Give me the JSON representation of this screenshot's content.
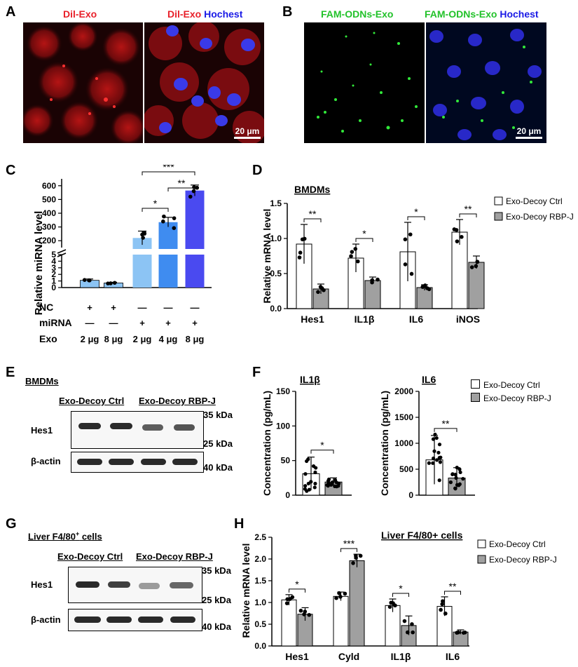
{
  "panels": {
    "A": "A",
    "B": "B",
    "C": "C",
    "D": "D",
    "E": "E",
    "F": "F",
    "G": "G",
    "H": "H"
  },
  "captions": {
    "a_left_dye": "Dil-Exo",
    "a_right_dye": "Dil-Exo",
    "a_right_nuc": "Hochest",
    "b_left_dye": "FAM-ODNs-Exo",
    "b_right_dye": "FAM-ODNs-Exo",
    "b_right_nuc": "Hochest",
    "scale_a": "20 μm",
    "scale_b": "20 μm"
  },
  "legend": {
    "ctrl": "Exo-Decoy Ctrl",
    "rbpj": "Exo-Decoy RBP-J"
  },
  "colors": {
    "dil": "#e8202a",
    "hoechst": "#1a1ae6",
    "fam": "#22c22a",
    "c_light": "#8cc4f4",
    "c_mid": "#3f8cf0",
    "c_dark": "#4a4af0",
    "ctrl_bar": "#ffffff",
    "rbpj_bar": "#a0a0a0"
  },
  "blots": {
    "e": {
      "title": "BMDMs",
      "grp1": "Exo-Decoy Ctrl",
      "grp2": "Exo-Decoy RBP-J",
      "row1": "Hes1",
      "row2": "β-actin",
      "m35": "35 kDa",
      "m25": "25 kDa",
      "m40": "40 kDa"
    },
    "g": {
      "title": "Liver F4/80",
      "title_sup": "+",
      "title_tail": " cells",
      "grp1": "Exo-Decoy Ctrl",
      "grp2": "Exo-Decoy RBP-J",
      "row1": "Hes1",
      "row2": "β-actin",
      "m35": "35 kDa",
      "m25": "25 kDa",
      "m40": "40 kDa"
    }
  },
  "table_c": {
    "rows": [
      {
        "label": "NC",
        "cells": [
          "+",
          "+",
          "—",
          "—",
          "—"
        ]
      },
      {
        "label": "miRNA",
        "cells": [
          "—",
          "—",
          "+",
          "+",
          "+"
        ]
      },
      {
        "label": "Exo",
        "cells": [
          "2 μg",
          "8 μg",
          "2 μg",
          "4 μg",
          "8 μg"
        ]
      }
    ]
  },
  "chart_data": [
    {
      "panel": "C",
      "type": "bar",
      "ylabel": "Relative miRNA level",
      "categories": [
        "NC 2 μg",
        "NC 8 μg",
        "miRNA 2 μg",
        "miRNA 4 μg",
        "miRNA 8 μg"
      ],
      "values": [
        1.1,
        0.7,
        220,
        335,
        565
      ],
      "errors": [
        0.2,
        0.1,
        50,
        35,
        40
      ],
      "broken_axis": true,
      "lower_ticks": [
        0,
        1,
        2,
        3,
        4,
        5
      ],
      "upper_ticks": [
        200,
        300,
        400,
        500,
        600
      ],
      "lower_ylim": [
        0,
        5
      ],
      "upper_ylim": [
        150,
        650
      ],
      "significance": [
        {
          "pair": [
            2,
            3
          ],
          "label": "*"
        },
        {
          "pair": [
            3,
            4
          ],
          "label": "**"
        },
        {
          "pair": [
            2,
            4
          ],
          "label": "***"
        }
      ]
    },
    {
      "panel": "D",
      "type": "bar",
      "ylabel": "Relative mRNA level",
      "title": "BMDMs",
      "categories": [
        "Hes1",
        "IL1β",
        "IL6",
        "iNOS"
      ],
      "series": [
        {
          "name": "Exo-Decoy Ctrl",
          "values": [
            0.92,
            0.72,
            0.81,
            1.09
          ],
          "errors": [
            0.28,
            0.2,
            0.42,
            0.18
          ]
        },
        {
          "name": "Exo-Decoy RBP-J",
          "values": [
            0.28,
            0.4,
            0.3,
            0.66
          ],
          "errors": [
            0.07,
            0.05,
            0.04,
            0.09
          ]
        }
      ],
      "yticks": [
        0.0,
        0.5,
        1.0,
        1.5
      ],
      "ylim": [
        0,
        1.5
      ],
      "significance": [
        "**",
        "*",
        "*",
        "**"
      ]
    },
    {
      "panel": "F-IL1β",
      "type": "bar",
      "ylabel": "Concentration (pg/mL)",
      "title": "IL1β",
      "categories": [
        "Exo-Decoy Ctrl",
        "Exo-Decoy RBP-J"
      ],
      "values": [
        31,
        19
      ],
      "errors": [
        24,
        6
      ],
      "yticks": [
        0,
        50,
        100,
        150
      ],
      "ylim": [
        0,
        150
      ],
      "significance": "*"
    },
    {
      "panel": "F-IL6",
      "type": "bar",
      "ylabel": "Concentration (pg/mL)",
      "title": "IL6",
      "categories": [
        "Exo-Decoy Ctrl",
        "Exo-Decoy RBP-J"
      ],
      "values": [
        680,
        330
      ],
      "errors": [
        470,
        200
      ],
      "yticks": [
        0,
        500,
        1000,
        1500,
        2000
      ],
      "ylim": [
        0,
        2000
      ],
      "significance": "**"
    },
    {
      "panel": "H",
      "type": "bar",
      "ylabel": "Relative mRNA level",
      "title": "Liver F4/80+ cells",
      "categories": [
        "Hes1",
        "Cyld",
        "IL1β",
        "IL6"
      ],
      "series": [
        {
          "name": "Exo-Decoy Ctrl",
          "values": [
            1.06,
            1.14,
            0.93,
            0.91
          ],
          "errors": [
            0.12,
            0.1,
            0.15,
            0.22
          ]
        },
        {
          "name": "Exo-Decoy RBP-J",
          "values": [
            0.73,
            1.96,
            0.47,
            0.32
          ],
          "errors": [
            0.15,
            0.15,
            0.22,
            0.05
          ]
        }
      ],
      "yticks": [
        0.0,
        0.5,
        1.0,
        1.5,
        2.0,
        2.5
      ],
      "ylim": [
        0,
        2.5
      ],
      "significance": [
        "*",
        "***",
        "*",
        "**"
      ]
    }
  ]
}
